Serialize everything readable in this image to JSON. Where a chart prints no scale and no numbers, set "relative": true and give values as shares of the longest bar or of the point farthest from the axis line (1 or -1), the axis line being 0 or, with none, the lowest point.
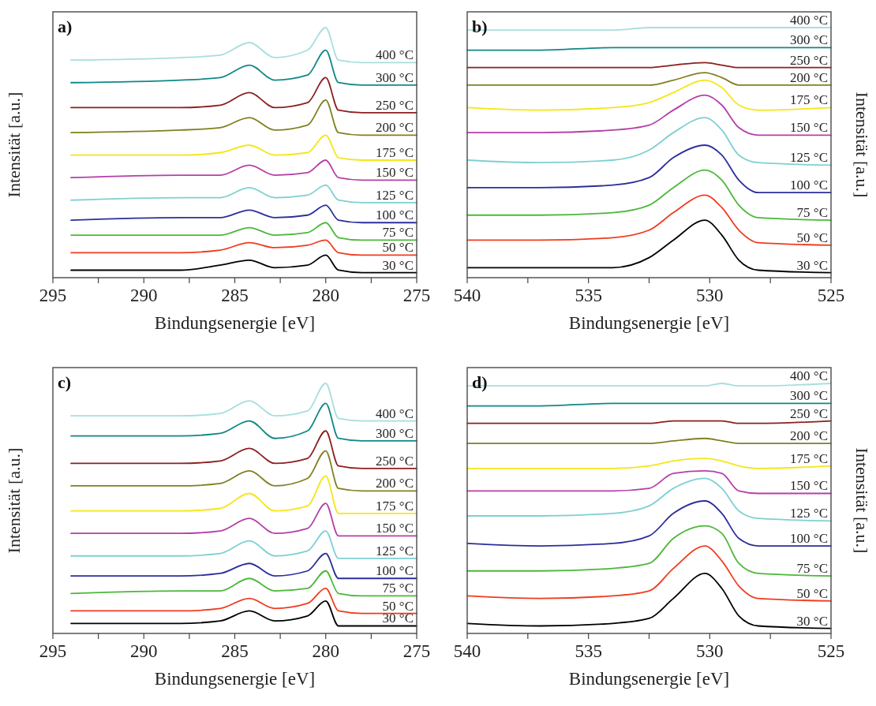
{
  "chart_data": [
    {
      "type": "line",
      "title": "a)",
      "xlabel": "Bindungsenergie [eV]",
      "ylabel": "Intensität [a.u.]",
      "relative": true,
      "legend": false,
      "xlim": [
        295,
        275
      ],
      "xticks": [
        295,
        {
          "value": 292.5,
          "label": null
        },
        290,
        {
          "value": 287.5,
          "label": null
        },
        285,
        {
          "value": 282.5,
          "label": null
        },
        280,
        {
          "value": 277.5,
          "label": null
        },
        275
      ],
      "x": [
        294,
        288,
        285.8,
        284.2,
        282.8,
        281,
        280,
        279.3,
        278,
        275
      ],
      "series": [
        {
          "name": "30 °C",
          "color": "#000000",
          "values": [
            0.03,
            0.03,
            0.05,
            0.07,
            0.04,
            0.05,
            0.09,
            0.03,
            0.02,
            0.02
          ]
        },
        {
          "name": "50 °C",
          "color": "#f03c1e",
          "values": [
            0.1,
            0.1,
            0.11,
            0.14,
            0.12,
            0.13,
            0.15,
            0.1,
            0.09,
            0.09
          ]
        },
        {
          "name": "75 °C",
          "color": "#4cb83a",
          "values": [
            0.17,
            0.17,
            0.17,
            0.2,
            0.17,
            0.18,
            0.22,
            0.16,
            0.15,
            0.15
          ]
        },
        {
          "name": "100 °C",
          "color": "#2b2f9a",
          "values": [
            0.23,
            0.24,
            0.24,
            0.27,
            0.24,
            0.25,
            0.29,
            0.23,
            0.22,
            0.22
          ]
        },
        {
          "name": "125 °C",
          "color": "#7fd0d0",
          "values": [
            0.31,
            0.32,
            0.32,
            0.36,
            0.32,
            0.33,
            0.37,
            0.31,
            0.3,
            0.3
          ]
        },
        {
          "name": "150 °C",
          "color": "#b53fa8",
          "values": [
            0.4,
            0.41,
            0.41,
            0.45,
            0.41,
            0.42,
            0.47,
            0.4,
            0.39,
            0.39
          ]
        },
        {
          "name": "175 °C",
          "color": "#f5e61a",
          "values": [
            0.49,
            0.49,
            0.5,
            0.53,
            0.49,
            0.5,
            0.57,
            0.48,
            0.47,
            0.47
          ]
        },
        {
          "name": "200 °C",
          "color": "#808020",
          "values": [
            0.58,
            0.59,
            0.6,
            0.64,
            0.59,
            0.61,
            0.71,
            0.58,
            0.57,
            0.57
          ]
        },
        {
          "name": "250 °C",
          "color": "#8b2020",
          "values": [
            0.68,
            0.68,
            0.69,
            0.74,
            0.68,
            0.7,
            0.8,
            0.67,
            0.66,
            0.66
          ]
        },
        {
          "name": "300 °C",
          "color": "#108888",
          "values": [
            0.78,
            0.79,
            0.8,
            0.85,
            0.79,
            0.81,
            0.91,
            0.78,
            0.77,
            0.77
          ]
        },
        {
          "name": "400 °C",
          "color": "#a8dede",
          "values": [
            0.87,
            0.88,
            0.89,
            0.94,
            0.88,
            0.91,
            1,
            0.87,
            0.86,
            0.86
          ]
        }
      ]
    },
    {
      "type": "line",
      "title": "b)",
      "xlabel": "Bindungsenergie [eV]",
      "ylabel": "Intensität [a.u.]",
      "relative": true,
      "legend": false,
      "xlim": [
        540,
        525
      ],
      "xticks": [
        540,
        {
          "value": 537.5,
          "label": null
        },
        535,
        {
          "value": 532.5,
          "label": null
        },
        530,
        {
          "value": 527.5,
          "label": null
        },
        525
      ],
      "x": [
        540,
        537,
        534,
        532.5,
        531.5,
        530.2,
        529.5,
        528.8,
        528,
        525
      ],
      "series": [
        {
          "name": "30 °C",
          "color": "#000000",
          "values": [
            0.04,
            0.04,
            0.04,
            0.08,
            0.15,
            0.23,
            0.17,
            0.07,
            0.03,
            0.02
          ]
        },
        {
          "name": "50 °C",
          "color": "#f03c1e",
          "values": [
            0.15,
            0.15,
            0.16,
            0.19,
            0.26,
            0.33,
            0.28,
            0.19,
            0.14,
            0.13
          ]
        },
        {
          "name": "75 °C",
          "color": "#4cb83a",
          "values": [
            0.25,
            0.25,
            0.26,
            0.29,
            0.36,
            0.43,
            0.39,
            0.29,
            0.24,
            0.23
          ]
        },
        {
          "name": "100 °C",
          "color": "#2b2f9a",
          "values": [
            0.36,
            0.36,
            0.37,
            0.4,
            0.48,
            0.53,
            0.49,
            0.39,
            0.34,
            0.34
          ]
        },
        {
          "name": "125 °C",
          "color": "#7fd0d0",
          "values": [
            0.47,
            0.46,
            0.47,
            0.51,
            0.58,
            0.64,
            0.59,
            0.49,
            0.46,
            0.45
          ]
        },
        {
          "name": "150 °C",
          "color": "#b53fa8",
          "values": [
            0.58,
            0.58,
            0.59,
            0.61,
            0.67,
            0.73,
            0.69,
            0.6,
            0.57,
            0.57
          ]
        },
        {
          "name": "175 °C",
          "color": "#f5e61a",
          "values": [
            0.68,
            0.67,
            0.68,
            0.7,
            0.74,
            0.79,
            0.76,
            0.69,
            0.67,
            0.68
          ]
        },
        {
          "name": "200 °C",
          "color": "#808020",
          "values": [
            0.77,
            0.77,
            0.77,
            0.77,
            0.79,
            0.82,
            0.8,
            0.77,
            0.77,
            0.77
          ]
        },
        {
          "name": "250 °C",
          "color": "#8b2020",
          "values": [
            0.84,
            0.84,
            0.84,
            0.84,
            0.85,
            0.86,
            0.85,
            0.84,
            0.84,
            0.84
          ]
        },
        {
          "name": "300 °C",
          "color": "#108888",
          "values": [
            0.91,
            0.91,
            0.92,
            0.92,
            0.92,
            0.92,
            0.92,
            0.92,
            0.92,
            0.92
          ]
        },
        {
          "name": "400 °C",
          "color": "#a8dede",
          "values": [
            0.99,
            0.99,
            0.99,
            1,
            1,
            1,
            1,
            1,
            1,
            1
          ]
        }
      ]
    },
    {
      "type": "line",
      "title": "c)",
      "xlabel": "Bindungsenergie [eV]",
      "ylabel": "Intensität [a.u.]",
      "relative": true,
      "legend": false,
      "xlim": [
        295,
        275
      ],
      "xticks": [
        295,
        {
          "value": 292.5,
          "label": null
        },
        290,
        {
          "value": 287.5,
          "label": null
        },
        285,
        {
          "value": 282.5,
          "label": null
        },
        280,
        {
          "value": 277.5,
          "label": null
        },
        275
      ],
      "x": [
        294,
        288,
        285.8,
        284.2,
        282.8,
        281,
        280,
        279.3,
        278,
        275
      ],
      "series": [
        {
          "name": "30 °C",
          "color": "#000000",
          "values": [
            0.04,
            0.04,
            0.05,
            0.09,
            0.05,
            0.07,
            0.13,
            0.03,
            0.03,
            0.03
          ]
        },
        {
          "name": "50 °C",
          "color": "#f03c1e",
          "values": [
            0.09,
            0.09,
            0.1,
            0.14,
            0.1,
            0.12,
            0.18,
            0.09,
            0.08,
            0.08
          ]
        },
        {
          "name": "75 °C",
          "color": "#4cb83a",
          "values": [
            0.16,
            0.17,
            0.17,
            0.22,
            0.17,
            0.18,
            0.25,
            0.16,
            0.15,
            0.15
          ]
        },
        {
          "name": "100 °C",
          "color": "#2b2f9a",
          "values": [
            0.23,
            0.23,
            0.24,
            0.28,
            0.23,
            0.25,
            0.32,
            0.22,
            0.22,
            0.22
          ]
        },
        {
          "name": "125 °C",
          "color": "#7fd0d0",
          "values": [
            0.31,
            0.31,
            0.32,
            0.37,
            0.31,
            0.33,
            0.41,
            0.3,
            0.3,
            0.3
          ]
        },
        {
          "name": "150 °C",
          "color": "#b53fa8",
          "values": [
            0.4,
            0.4,
            0.41,
            0.46,
            0.4,
            0.42,
            0.52,
            0.39,
            0.39,
            0.39
          ]
        },
        {
          "name": "175 °C",
          "color": "#f5e61a",
          "values": [
            0.49,
            0.49,
            0.5,
            0.56,
            0.49,
            0.51,
            0.63,
            0.48,
            0.48,
            0.48
          ]
        },
        {
          "name": "200 °C",
          "color": "#808020",
          "values": [
            0.59,
            0.59,
            0.6,
            0.65,
            0.59,
            0.62,
            0.73,
            0.58,
            0.57,
            0.57
          ]
        },
        {
          "name": "250 °C",
          "color": "#8b2020",
          "values": [
            0.68,
            0.68,
            0.69,
            0.74,
            0.68,
            0.7,
            0.81,
            0.67,
            0.66,
            0.66
          ]
        },
        {
          "name": "300 °C",
          "color": "#108888",
          "values": [
            0.79,
            0.79,
            0.8,
            0.85,
            0.78,
            0.81,
            0.92,
            0.78,
            0.77,
            0.77
          ]
        },
        {
          "name": "400 °C",
          "color": "#a8dede",
          "values": [
            0.87,
            0.87,
            0.88,
            0.93,
            0.87,
            0.89,
            1,
            0.86,
            0.85,
            0.85
          ]
        }
      ]
    },
    {
      "type": "line",
      "title": "d)",
      "xlabel": "Bindungsenergie [eV]",
      "ylabel": "Intensität [a.u.]",
      "relative": true,
      "legend": false,
      "xlim": [
        540,
        525
      ],
      "xticks": [
        540,
        {
          "value": 537.5,
          "label": null
        },
        535,
        {
          "value": 532.5,
          "label": null
        },
        530,
        {
          "value": 527.5,
          "label": null
        },
        525
      ],
      "x": [
        540,
        537,
        534,
        532.5,
        531.5,
        530.2,
        529.5,
        528.8,
        528,
        525
      ],
      "series": [
        {
          "name": "30 °C",
          "color": "#000000",
          "values": [
            0.04,
            0.03,
            0.04,
            0.06,
            0.14,
            0.24,
            0.18,
            0.07,
            0.03,
            0.02
          ]
        },
        {
          "name": "50 °C",
          "color": "#f03c1e",
          "values": [
            0.15,
            0.14,
            0.15,
            0.17,
            0.26,
            0.35,
            0.29,
            0.19,
            0.14,
            0.13
          ]
        },
        {
          "name": "75 °C",
          "color": "#4cb83a",
          "values": [
            0.25,
            0.25,
            0.26,
            0.28,
            0.38,
            0.43,
            0.4,
            0.28,
            0.24,
            0.23
          ]
        },
        {
          "name": "100 °C",
          "color": "#2b2f9a",
          "values": [
            0.36,
            0.35,
            0.36,
            0.39,
            0.48,
            0.53,
            0.48,
            0.38,
            0.35,
            0.35
          ]
        },
        {
          "name": "125 °C",
          "color": "#7fd0d0",
          "values": [
            0.47,
            0.47,
            0.48,
            0.51,
            0.58,
            0.62,
            0.58,
            0.49,
            0.46,
            0.45
          ]
        },
        {
          "name": "150 °C",
          "color": "#b53fa8",
          "values": [
            0.57,
            0.57,
            0.57,
            0.58,
            0.64,
            0.65,
            0.64,
            0.57,
            0.56,
            0.56
          ]
        },
        {
          "name": "175 °C",
          "color": "#f5e61a",
          "values": [
            0.66,
            0.66,
            0.66,
            0.67,
            0.69,
            0.7,
            0.69,
            0.67,
            0.66,
            0.67
          ]
        },
        {
          "name": "200 °C",
          "color": "#808020",
          "values": [
            0.76,
            0.76,
            0.76,
            0.76,
            0.77,
            0.78,
            0.77,
            0.76,
            0.76,
            0.76
          ]
        },
        {
          "name": "250 °C",
          "color": "#8b2020",
          "values": [
            0.84,
            0.84,
            0.84,
            0.84,
            0.85,
            0.85,
            0.85,
            0.84,
            0.84,
            0.85
          ]
        },
        {
          "name": "300 °C",
          "color": "#108888",
          "values": [
            0.91,
            0.91,
            0.92,
            0.92,
            0.92,
            0.92,
            0.92,
            0.92,
            0.92,
            0.92
          ]
        },
        {
          "name": "400 °C",
          "color": "#a8dede",
          "values": [
            0.99,
            0.99,
            0.99,
            0.99,
            0.99,
            0.99,
            1,
            0.99,
            0.99,
            1
          ]
        }
      ]
    }
  ]
}
